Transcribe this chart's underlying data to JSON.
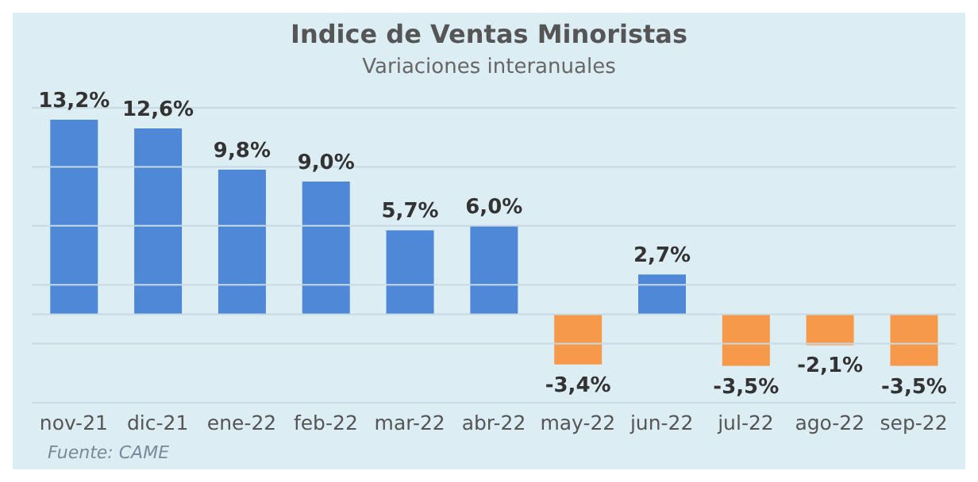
{
  "chart_data": {
    "type": "bar",
    "title": "Indice de Ventas Minoristas",
    "subtitle": "Variaciones interanuales",
    "categories": [
      "nov-21",
      "dic-21",
      "ene-22",
      "feb-22",
      "mar-22",
      "abr-22",
      "may-22",
      "jun-22",
      "jul-22",
      "ago-22",
      "sep-22"
    ],
    "values": [
      13.2,
      12.6,
      9.8,
      9.0,
      5.7,
      6.0,
      -3.4,
      2.7,
      -3.5,
      -2.1,
      -3.5
    ],
    "value_labels": [
      "13,2%",
      "12,6%",
      "9,8%",
      "9,0%",
      "5,7%",
      "6,0%",
      "-3,4%",
      "2,7%",
      "-3,5%",
      "-2,1%",
      "-3,5%"
    ],
    "colors": [
      "#4f88d6",
      "#4f88d6",
      "#4f88d6",
      "#4f88d6",
      "#4f88d6",
      "#4f88d6",
      "#f7994a",
      "#4f88d6",
      "#f7994a",
      "#f7994a",
      "#f7994a"
    ],
    "ylim": [
      -6,
      14
    ],
    "yticks": [
      {
        "value": -6,
        "label": null
      },
      {
        "value": -2,
        "label": null
      },
      {
        "value": 2,
        "label": null
      },
      {
        "value": 6,
        "label": null
      },
      {
        "value": 10,
        "label": null
      },
      {
        "value": 14,
        "label": null
      }
    ],
    "grid": "y",
    "tick_labels": "x",
    "annotations": [
      "Fuente: CAME"
    ]
  }
}
